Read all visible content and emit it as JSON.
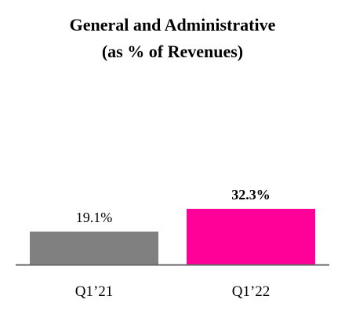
{
  "chart_data": {
    "type": "bar",
    "title": "General and Administrative",
    "subtitle": "(as % of Revenues)",
    "categories": [
      "Q1’21",
      "Q1’22"
    ],
    "values": [
      19.1,
      32.3
    ],
    "data_labels": [
      "19.1%",
      "32.3%"
    ],
    "bold_labels": [
      false,
      true
    ],
    "colors": [
      "#808080",
      "#ff0099"
    ],
    "axis_color": "#666666",
    "ylim": [
      0,
      35
    ],
    "xlabel": "",
    "ylabel": "",
    "grid": false,
    "legend": "none"
  }
}
